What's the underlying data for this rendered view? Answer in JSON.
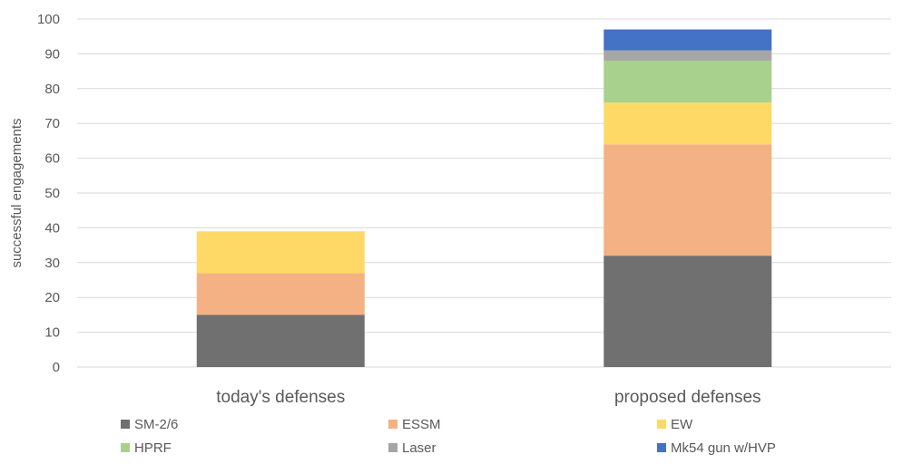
{
  "chart_data": {
    "type": "bar",
    "stacked": true,
    "categories": [
      "today's defenses",
      "proposed defenses"
    ],
    "series": [
      {
        "name": "SM-2/6",
        "color": "#707070",
        "values": [
          15,
          32
        ]
      },
      {
        "name": "ESSM",
        "color": "#f4b183",
        "values": [
          12,
          32
        ]
      },
      {
        "name": "EW",
        "color": "#ffd966",
        "values": [
          12,
          12
        ]
      },
      {
        "name": "HPRF",
        "color": "#a9d18e",
        "values": [
          0,
          12
        ]
      },
      {
        "name": "Laser",
        "color": "#a6a6a6",
        "values": [
          0,
          3
        ]
      },
      {
        "name": "Mk54 gun w/HVP",
        "color": "#4472c4",
        "values": [
          0,
          6
        ]
      }
    ],
    "ylabel": "successful engagements",
    "ylim": [
      0,
      100
    ],
    "yticks": [
      0,
      10,
      20,
      30,
      40,
      50,
      60,
      70,
      80,
      90,
      100
    ],
    "grid": true,
    "legend_position": "bottom"
  }
}
